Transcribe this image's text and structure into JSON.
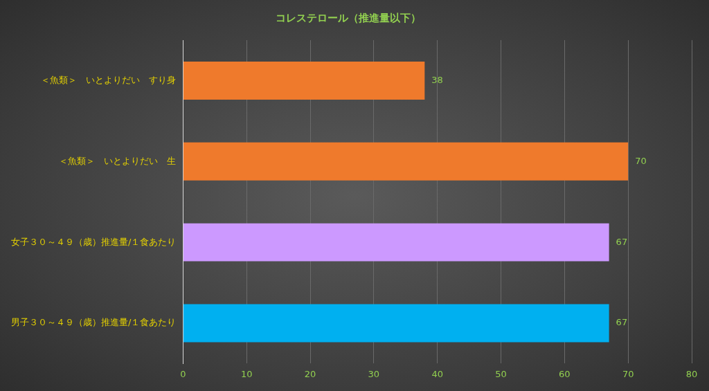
{
  "chart_data": {
    "type": "bar",
    "orientation": "horizontal",
    "title": "コレステロール（推進量以下）",
    "categories": [
      "＜魚類＞　いとよりだい　すり身",
      "＜魚類＞　いとよりだい　生",
      "女子３０～４９（歳）推進量/１食あたり",
      "男子３０～４９（歳）推進量/１食あたり"
    ],
    "values": [
      38,
      70,
      67,
      67
    ],
    "colors": [
      "#ef7a2c",
      "#ef7a2c",
      "#cc99ff",
      "#00b0f0"
    ],
    "xlim": [
      0,
      80
    ],
    "xticks": [
      0,
      10,
      20,
      30,
      40,
      50,
      60,
      70,
      80
    ],
    "grid": "x",
    "legend": false,
    "data_labels": true
  }
}
